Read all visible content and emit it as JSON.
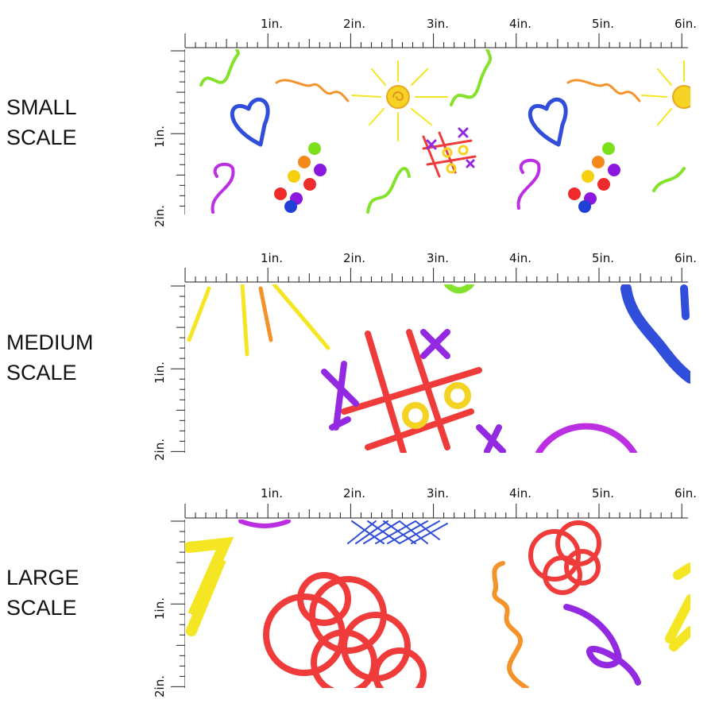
{
  "sections": [
    {
      "id": "small",
      "label_line1": "SMALL",
      "label_line2": "SCALE",
      "scale_factor": 0.45,
      "top_ruler": [
        "1in.",
        "2in.",
        "3in.",
        "4in.",
        "5in.",
        "6in."
      ],
      "side_ruler": [
        "1in.",
        "2in."
      ]
    },
    {
      "id": "medium",
      "label_line1": "MEDIUM",
      "label_line2": "SCALE",
      "scale_factor": 1.0,
      "top_ruler": [
        "1in.",
        "2in.",
        "3in.",
        "4in.",
        "5in.",
        "6in."
      ],
      "side_ruler": [
        "1in.",
        "2in."
      ]
    },
    {
      "id": "large",
      "label_line1": "LARGE",
      "label_line2": "SCALE",
      "scale_factor": 1.6,
      "top_ruler": [
        "1in.",
        "2in.",
        "3in.",
        "4in.",
        "5in.",
        "6in."
      ],
      "side_ruler": [
        "1in.",
        "2in."
      ]
    }
  ],
  "colors": {
    "red": "#ef2b2b",
    "blue": "#1f3fd6",
    "yellow": "#f4e410",
    "green": "#7be01a",
    "purple": "#8a18e0",
    "orange": "#f58a1a",
    "magenta": "#b61de0"
  }
}
